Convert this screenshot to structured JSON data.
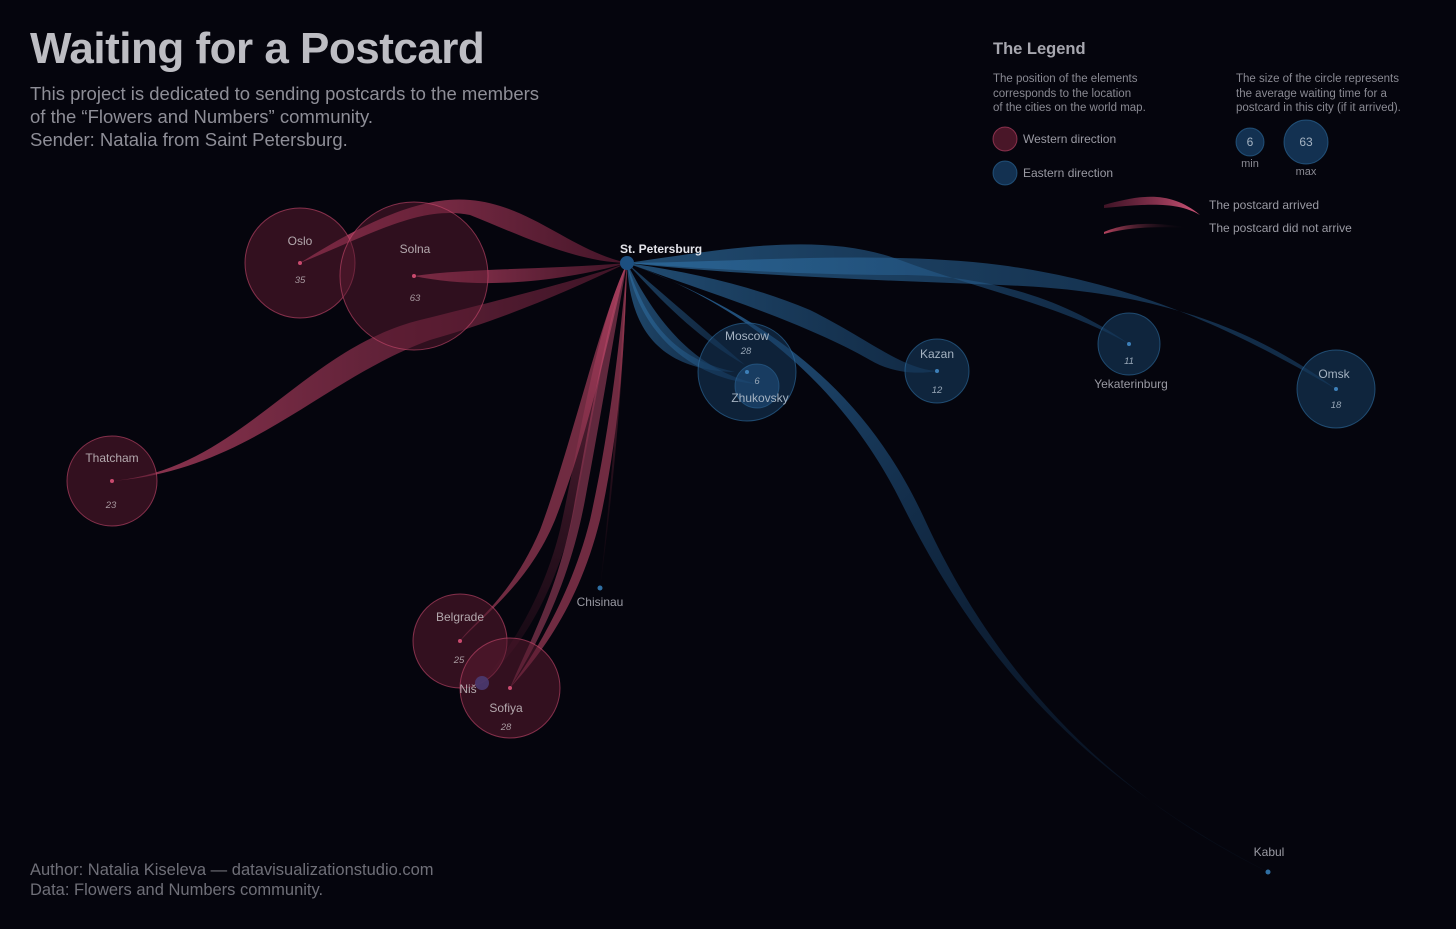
{
  "header": {
    "title": "Waiting for a Postcard",
    "subtitle_lines": [
      "This project is dedicated to sending postcards to the members",
      "of the “Flowers and Numbers” community.",
      "Sender: Natalia from Saint Petersburg."
    ]
  },
  "footer": {
    "author": "Author: Natalia Kiseleva — datavisualizationstudio.com",
    "data_source": "Data: Flowers and Numbers community."
  },
  "legend": {
    "title": "The Legend",
    "position_note": [
      "The position of the elements",
      "corresponds to the location",
      "of the cities on the world map."
    ],
    "size_note": [
      "The size of the circle represents",
      "the average waiting time for a",
      "postcard in this city (if it arrived)."
    ],
    "western_label": "Western direction",
    "eastern_label": "Eastern direction",
    "min_value": "6",
    "min_label": "min",
    "max_value": "63",
    "max_label": "max",
    "arrived_label": "The postcard arrived",
    "not_arrived_label": "The postcard did not arrive"
  },
  "colors": {
    "background": "#05050d",
    "western": "#c94a6e",
    "western_fill": "#5a1a30",
    "eastern": "#2f6fa3",
    "eastern_fill": "#163a5e"
  },
  "origin": {
    "name": "St. Petersburg"
  },
  "cities": [
    {
      "name": "Oslo",
      "days": "35",
      "direction": "west",
      "arrived": true
    },
    {
      "name": "Solna",
      "days": "63",
      "direction": "west",
      "arrived": true
    },
    {
      "name": "Thatcham",
      "days": "23",
      "direction": "west",
      "arrived": true
    },
    {
      "name": "Belgrade",
      "days": "25",
      "direction": "west",
      "arrived": true
    },
    {
      "name": "Niš",
      "days": "",
      "direction": "west",
      "arrived": false
    },
    {
      "name": "Sofiya",
      "days": "28",
      "direction": "west",
      "arrived": true
    },
    {
      "name": "Chisinau",
      "days": "",
      "direction": "west",
      "arrived": false
    },
    {
      "name": "Moscow",
      "days": "28",
      "direction": "east",
      "arrived": true
    },
    {
      "name": "Zhukovsky",
      "days": "6",
      "direction": "east",
      "arrived": true
    },
    {
      "name": "Kazan",
      "days": "12",
      "direction": "east",
      "arrived": true
    },
    {
      "name": "Yekaterinburg",
      "days": "11",
      "direction": "east",
      "arrived": true
    },
    {
      "name": "Omsk",
      "days": "18",
      "direction": "east",
      "arrived": true
    },
    {
      "name": "Kabul",
      "days": "",
      "direction": "east",
      "arrived": false
    }
  ]
}
